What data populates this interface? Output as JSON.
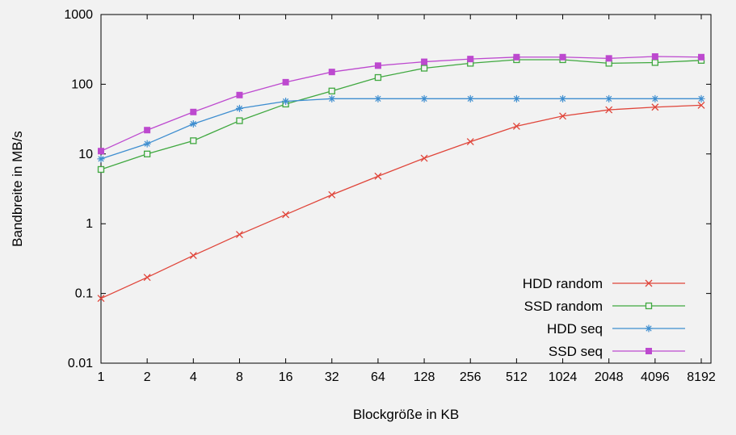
{
  "colors": {
    "background": "#f2f2f2",
    "border": "#000000",
    "text": "#000000"
  },
  "chart_data": {
    "type": "line",
    "title": "",
    "xlabel": "Blockgröße in KB",
    "ylabel": "Bandbreite in MB/s",
    "x_scale": "log2",
    "y_scale": "log10",
    "xlim": [
      1,
      8192
    ],
    "ylim": [
      0.01,
      1000
    ],
    "grid": false,
    "legend_position": "inside-bottom-right",
    "x": [
      1,
      2,
      4,
      8,
      16,
      32,
      64,
      128,
      256,
      512,
      1024,
      2048,
      4096,
      8192
    ],
    "x_tick_labels": [
      "1",
      "2",
      "4",
      "8",
      "16",
      "32",
      "64",
      "128",
      "256",
      "512",
      "1024",
      "2048",
      "4096",
      "8192"
    ],
    "y_tick_labels": [
      "0.01",
      "0.1",
      "1",
      "10",
      "100",
      "1000"
    ],
    "y_tick_values": [
      0.01,
      0.1,
      1,
      10,
      100,
      1000
    ],
    "series": [
      {
        "name": "HDD random",
        "color": "#e0453a",
        "marker": "x",
        "values": [
          0.085,
          0.17,
          0.35,
          0.7,
          1.35,
          2.6,
          4.8,
          8.7,
          15,
          25,
          35,
          43,
          47,
          50
        ]
      },
      {
        "name": "SSD random",
        "color": "#3fa83f",
        "marker": "open-square",
        "values": [
          6,
          10,
          15.5,
          30,
          52,
          80,
          125,
          170,
          200,
          225,
          225,
          200,
          205,
          220
        ]
      },
      {
        "name": "HDD seq",
        "color": "#3e8ed0",
        "marker": "asterisk",
        "values": [
          8.5,
          14,
          27,
          45,
          57,
          62,
          62,
          62,
          62,
          62,
          62,
          62,
          62,
          62
        ]
      },
      {
        "name": "SSD seq",
        "color": "#bd49cf",
        "marker": "filled-square",
        "values": [
          11,
          22,
          40,
          70,
          107,
          150,
          185,
          210,
          230,
          245,
          245,
          235,
          250,
          245
        ]
      }
    ]
  }
}
